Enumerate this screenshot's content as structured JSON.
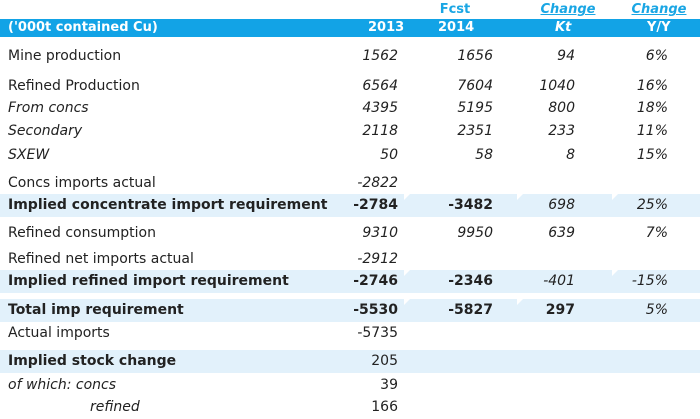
{
  "header": {
    "fcst": "Fcst",
    "change_top_1": "Change",
    "change_top_2": "Change",
    "unit": "('000t contained Cu)",
    "y2013": "2013",
    "y2014": "2014",
    "kt": "Kt",
    "yy": "Y/Y"
  },
  "rows": [
    {
      "label": "Mine production",
      "v2013": "1562",
      "v2014": "1656",
      "kt": "94",
      "yy": "6%"
    },
    {
      "label": "Refined Production",
      "v2013": "6564",
      "v2014": "7604",
      "kt": "1040",
      "yy": "16%"
    },
    {
      "label": "From concs",
      "v2013": "4395",
      "v2014": "5195",
      "kt": "800",
      "yy": "18%"
    },
    {
      "label": "Secondary",
      "v2013": "2118",
      "v2014": "2351",
      "kt": "233",
      "yy": "11%"
    },
    {
      "label": "SXEW",
      "v2013": "50",
      "v2014": "58",
      "kt": "8",
      "yy": "15%"
    },
    {
      "label": "Concs imports actual",
      "v2013": "-2822"
    },
    {
      "label": "Implied concentrate import requirement",
      "v2013": "-2784",
      "v2014": "-3482",
      "kt": "698",
      "yy": "25%"
    },
    {
      "label": "Refined consumption",
      "v2013": "9310",
      "v2014": "9950",
      "kt": "639",
      "yy": "7%"
    },
    {
      "label": "Refined net imports actual",
      "v2013": "-2912"
    },
    {
      "label": "Implied refined import requirement",
      "v2013": "-2746",
      "v2014": "-2346",
      "kt": "-401",
      "yy": "-15%"
    },
    {
      "label": "Total imp requirement",
      "v2013": "-5530",
      "v2014": "-5827",
      "kt": "297",
      "yy": "5%"
    },
    {
      "label": "Actual imports",
      "v2013": "-5735"
    },
    {
      "label": "Implied stock change",
      "v2013": "205"
    },
    {
      "label": "of which: concs",
      "v2013": "39"
    },
    {
      "label": "refined",
      "v2013": "166"
    }
  ],
  "colors": {
    "header_bar": "#12a3e6",
    "accent_text": "#1aa6e4",
    "row_shade": "#e2f1fb"
  }
}
